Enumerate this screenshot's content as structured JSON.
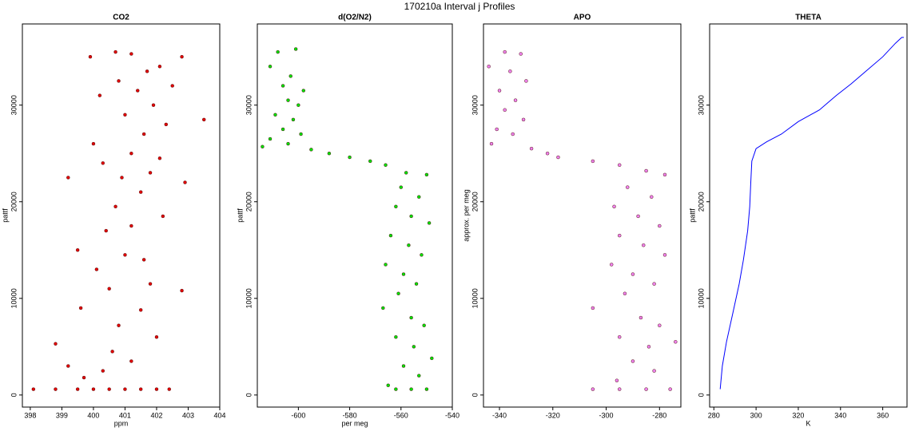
{
  "title": "170210a   Interval j Profiles",
  "chart_data": [
    {
      "type": "scatter",
      "title": "CO2",
      "xlabel": "ppm",
      "ylabel": "pattf",
      "color": "#e00000",
      "xlim": [
        397.75,
        404
      ],
      "xticks": [
        398,
        399,
        400,
        401,
        402,
        403,
        404
      ],
      "ylim": [
        -1250,
        38400
      ],
      "yticks": [
        0,
        10000,
        20000,
        30000
      ],
      "x": [
        398.1,
        398.8,
        399.5,
        400,
        400.5,
        401,
        401.5,
        402,
        402.4,
        398.8,
        399.2,
        399.7,
        400.3,
        400.6,
        401.2,
        402,
        400.8,
        401.5,
        399.6,
        400.5,
        401.8,
        402.8,
        400.1,
        401.0,
        401.6,
        399.5,
        400.4,
        401.2,
        402.2,
        400.7,
        401.5,
        399.2,
        400.9,
        401.8,
        402.9,
        400.3,
        401.2,
        402.1,
        400.0,
        401.6,
        402.3,
        403.5,
        401.0,
        401.9,
        400.2,
        401.4,
        402.5,
        400.8,
        401.7,
        402.1,
        399.9,
        400.7,
        401.2,
        402.8
      ],
      "values": [
        600,
        600,
        600,
        600,
        600,
        600,
        600,
        600,
        600,
        5300,
        3000,
        1800,
        2500,
        4500,
        3500,
        6000,
        7200,
        8800,
        9000,
        11000,
        11500,
        10800,
        13000,
        14500,
        14000,
        15000,
        17000,
        17500,
        18500,
        19500,
        21000,
        22500,
        22500,
        23000,
        22000,
        24000,
        25000,
        24500,
        26000,
        27000,
        28000,
        28500,
        29000,
        30000,
        31000,
        31500,
        32000,
        32500,
        33500,
        34000,
        35000,
        35500,
        35300,
        35000
      ]
    },
    {
      "type": "scatter",
      "title": "d(O2/N2)",
      "xlabel": "per meg",
      "ylabel": "pattf",
      "color": "#00e000",
      "xlim": [
        -616,
        -540
      ],
      "xticks": [
        -600,
        -580,
        -560,
        -540
      ],
      "ylim": [
        -1250,
        38400
      ],
      "yticks": [
        0,
        10000,
        20000,
        30000
      ],
      "x": [
        -608,
        -601,
        -611,
        -603,
        -606,
        -598,
        -604,
        -600,
        -609,
        -602,
        -606,
        -599,
        -611,
        -604,
        -614,
        -595,
        -588,
        -580,
        -572,
        -566,
        -558,
        -550,
        -560,
        -553,
        -562,
        -556,
        -549,
        -564,
        -557,
        -552,
        -566,
        -559,
        -554,
        -561,
        -567,
        -556,
        -551,
        -562,
        -555,
        -548,
        -559,
        -553,
        -565,
        -562,
        -556,
        -550
      ],
      "values": [
        35500,
        35800,
        34000,
        33000,
        32000,
        31500,
        30500,
        30000,
        29000,
        28500,
        27500,
        27000,
        26500,
        26000,
        25700,
        25400,
        25000,
        24600,
        24200,
        23800,
        23000,
        22800,
        21500,
        20500,
        19500,
        18500,
        17800,
        16500,
        15500,
        14500,
        13500,
        12500,
        11500,
        10500,
        9000,
        8000,
        7200,
        6000,
        5000,
        3800,
        3000,
        2000,
        1000,
        600,
        600,
        600
      ]
    },
    {
      "type": "scatter",
      "title": "APO",
      "ylabel": "approx. per meg",
      "color": "#ee82ee",
      "xlim": [
        -346,
        -272
      ],
      "xticks": [
        -340,
        -320,
        -300,
        -280
      ],
      "ylim": [
        -1250,
        38400
      ],
      "yticks": [
        0,
        10000,
        20000,
        30000
      ],
      "x": [
        -338,
        -332,
        -344,
        -336,
        -330,
        -340,
        -334,
        -338,
        -331,
        -341,
        -335,
        -343,
        -328,
        -322,
        -318,
        -305,
        -295,
        -285,
        -278,
        -292,
        -283,
        -297,
        -288,
        -280,
        -295,
        -286,
        -278,
        -298,
        -290,
        -282,
        -293,
        -305,
        -287,
        -280,
        -295,
        -284,
        -274,
        -290,
        -282,
        -296,
        -305,
        -295,
        -285,
        -276
      ],
      "values": [
        35500,
        35300,
        34000,
        33500,
        32500,
        31500,
        30500,
        29500,
        28500,
        27500,
        27000,
        26000,
        25500,
        25000,
        24600,
        24200,
        23800,
        23200,
        22800,
        21500,
        20500,
        19500,
        18500,
        17500,
        16500,
        15500,
        14500,
        13500,
        12500,
        11500,
        10500,
        9000,
        8000,
        7200,
        6000,
        5000,
        5500,
        3500,
        2500,
        1500,
        600,
        600,
        600,
        600
      ]
    },
    {
      "type": "line",
      "title": "THETA",
      "xlabel": "K",
      "ylabel": "pattf",
      "color": "#0000ff",
      "xlim": [
        278,
        371.5
      ],
      "xticks": [
        280,
        300,
        320,
        340,
        360
      ],
      "ylim": [
        -1250,
        38400
      ],
      "yticks": [
        0,
        10000,
        20000,
        30000
      ],
      "x": [
        283,
        284,
        286,
        289,
        292,
        294,
        296,
        297,
        297.5,
        298,
        300,
        305,
        312,
        320,
        330,
        338,
        345,
        352,
        360,
        366,
        369,
        370
      ],
      "values": [
        600,
        3000,
        5500,
        8500,
        11500,
        14000,
        17000,
        19500,
        22000,
        24200,
        25500,
        26200,
        27000,
        28300,
        29500,
        31000,
        32200,
        33500,
        35000,
        36400,
        37000,
        37000
      ]
    }
  ]
}
